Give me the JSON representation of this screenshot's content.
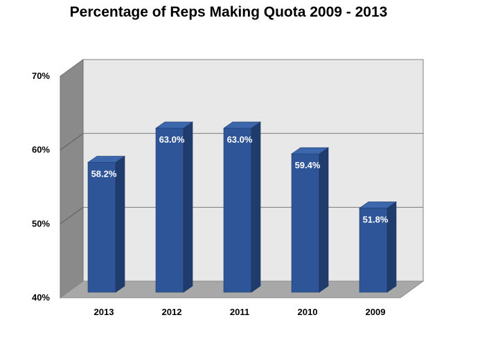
{
  "chart_data": {
    "type": "bar",
    "title": "Percentage of Reps Making Quota 2009 - 2013",
    "categories": [
      "2013",
      "2012",
      "2011",
      "2010",
      "2009"
    ],
    "series": [
      {
        "values": [
          58.2,
          63.0,
          63.0,
          59.4,
          51.8
        ],
        "data_labels": [
          "58.2%",
          "63.0%",
          "63.0%",
          "59.4%",
          "51.8%"
        ],
        "color": "#2e5597"
      }
    ],
    "y_ticks": [
      "40%",
      "50%",
      "60%",
      "70%"
    ],
    "ylim": [
      40,
      70
    ],
    "grid": true,
    "legend": "none",
    "style": "3d-column"
  }
}
